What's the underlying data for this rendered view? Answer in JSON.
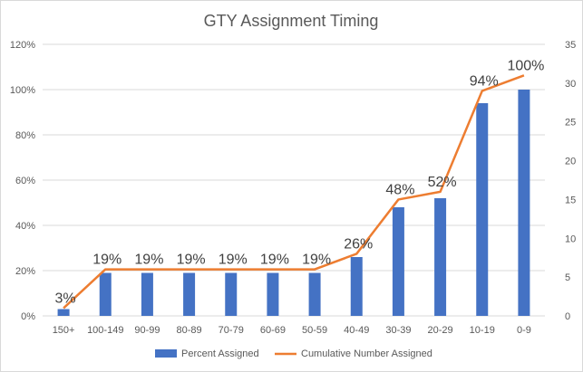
{
  "chart_data": {
    "type": "bar",
    "title": "GTY Assignment Timing",
    "categories": [
      "150+",
      "100-149",
      "90-99",
      "80-89",
      "70-79",
      "60-69",
      "50-59",
      "40-49",
      "30-39",
      "20-29",
      "10-19",
      "0-9"
    ],
    "series": [
      {
        "name": "Percent Assigned",
        "type": "bar",
        "axis": "left",
        "values": [
          3,
          19,
          19,
          19,
          19,
          19,
          19,
          26,
          48,
          52,
          94,
          100
        ],
        "color": "#4472c4"
      },
      {
        "name": "Cumulative Number Assigned",
        "type": "line",
        "axis": "right",
        "values": [
          1,
          6,
          6,
          6,
          6,
          6,
          6,
          8,
          15,
          16,
          29,
          31
        ],
        "color": "#ed7d31"
      }
    ],
    "data_labels": [
      "3%",
      "19%",
      "19%",
      "19%",
      "19%",
      "19%",
      "19%",
      "26%",
      "48%",
      "52%",
      "94%",
      "100%"
    ],
    "y_left": {
      "min": 0,
      "max": 120,
      "step": 20,
      "tick_labels": [
        "0%",
        "20%",
        "40%",
        "60%",
        "80%",
        "100%",
        "120%"
      ]
    },
    "y_right": {
      "min": 0,
      "max": 35,
      "step": 5,
      "tick_labels": [
        "0",
        "5",
        "10",
        "15",
        "20",
        "25",
        "30",
        "35"
      ]
    },
    "grid": true,
    "legend_position": "bottom"
  }
}
